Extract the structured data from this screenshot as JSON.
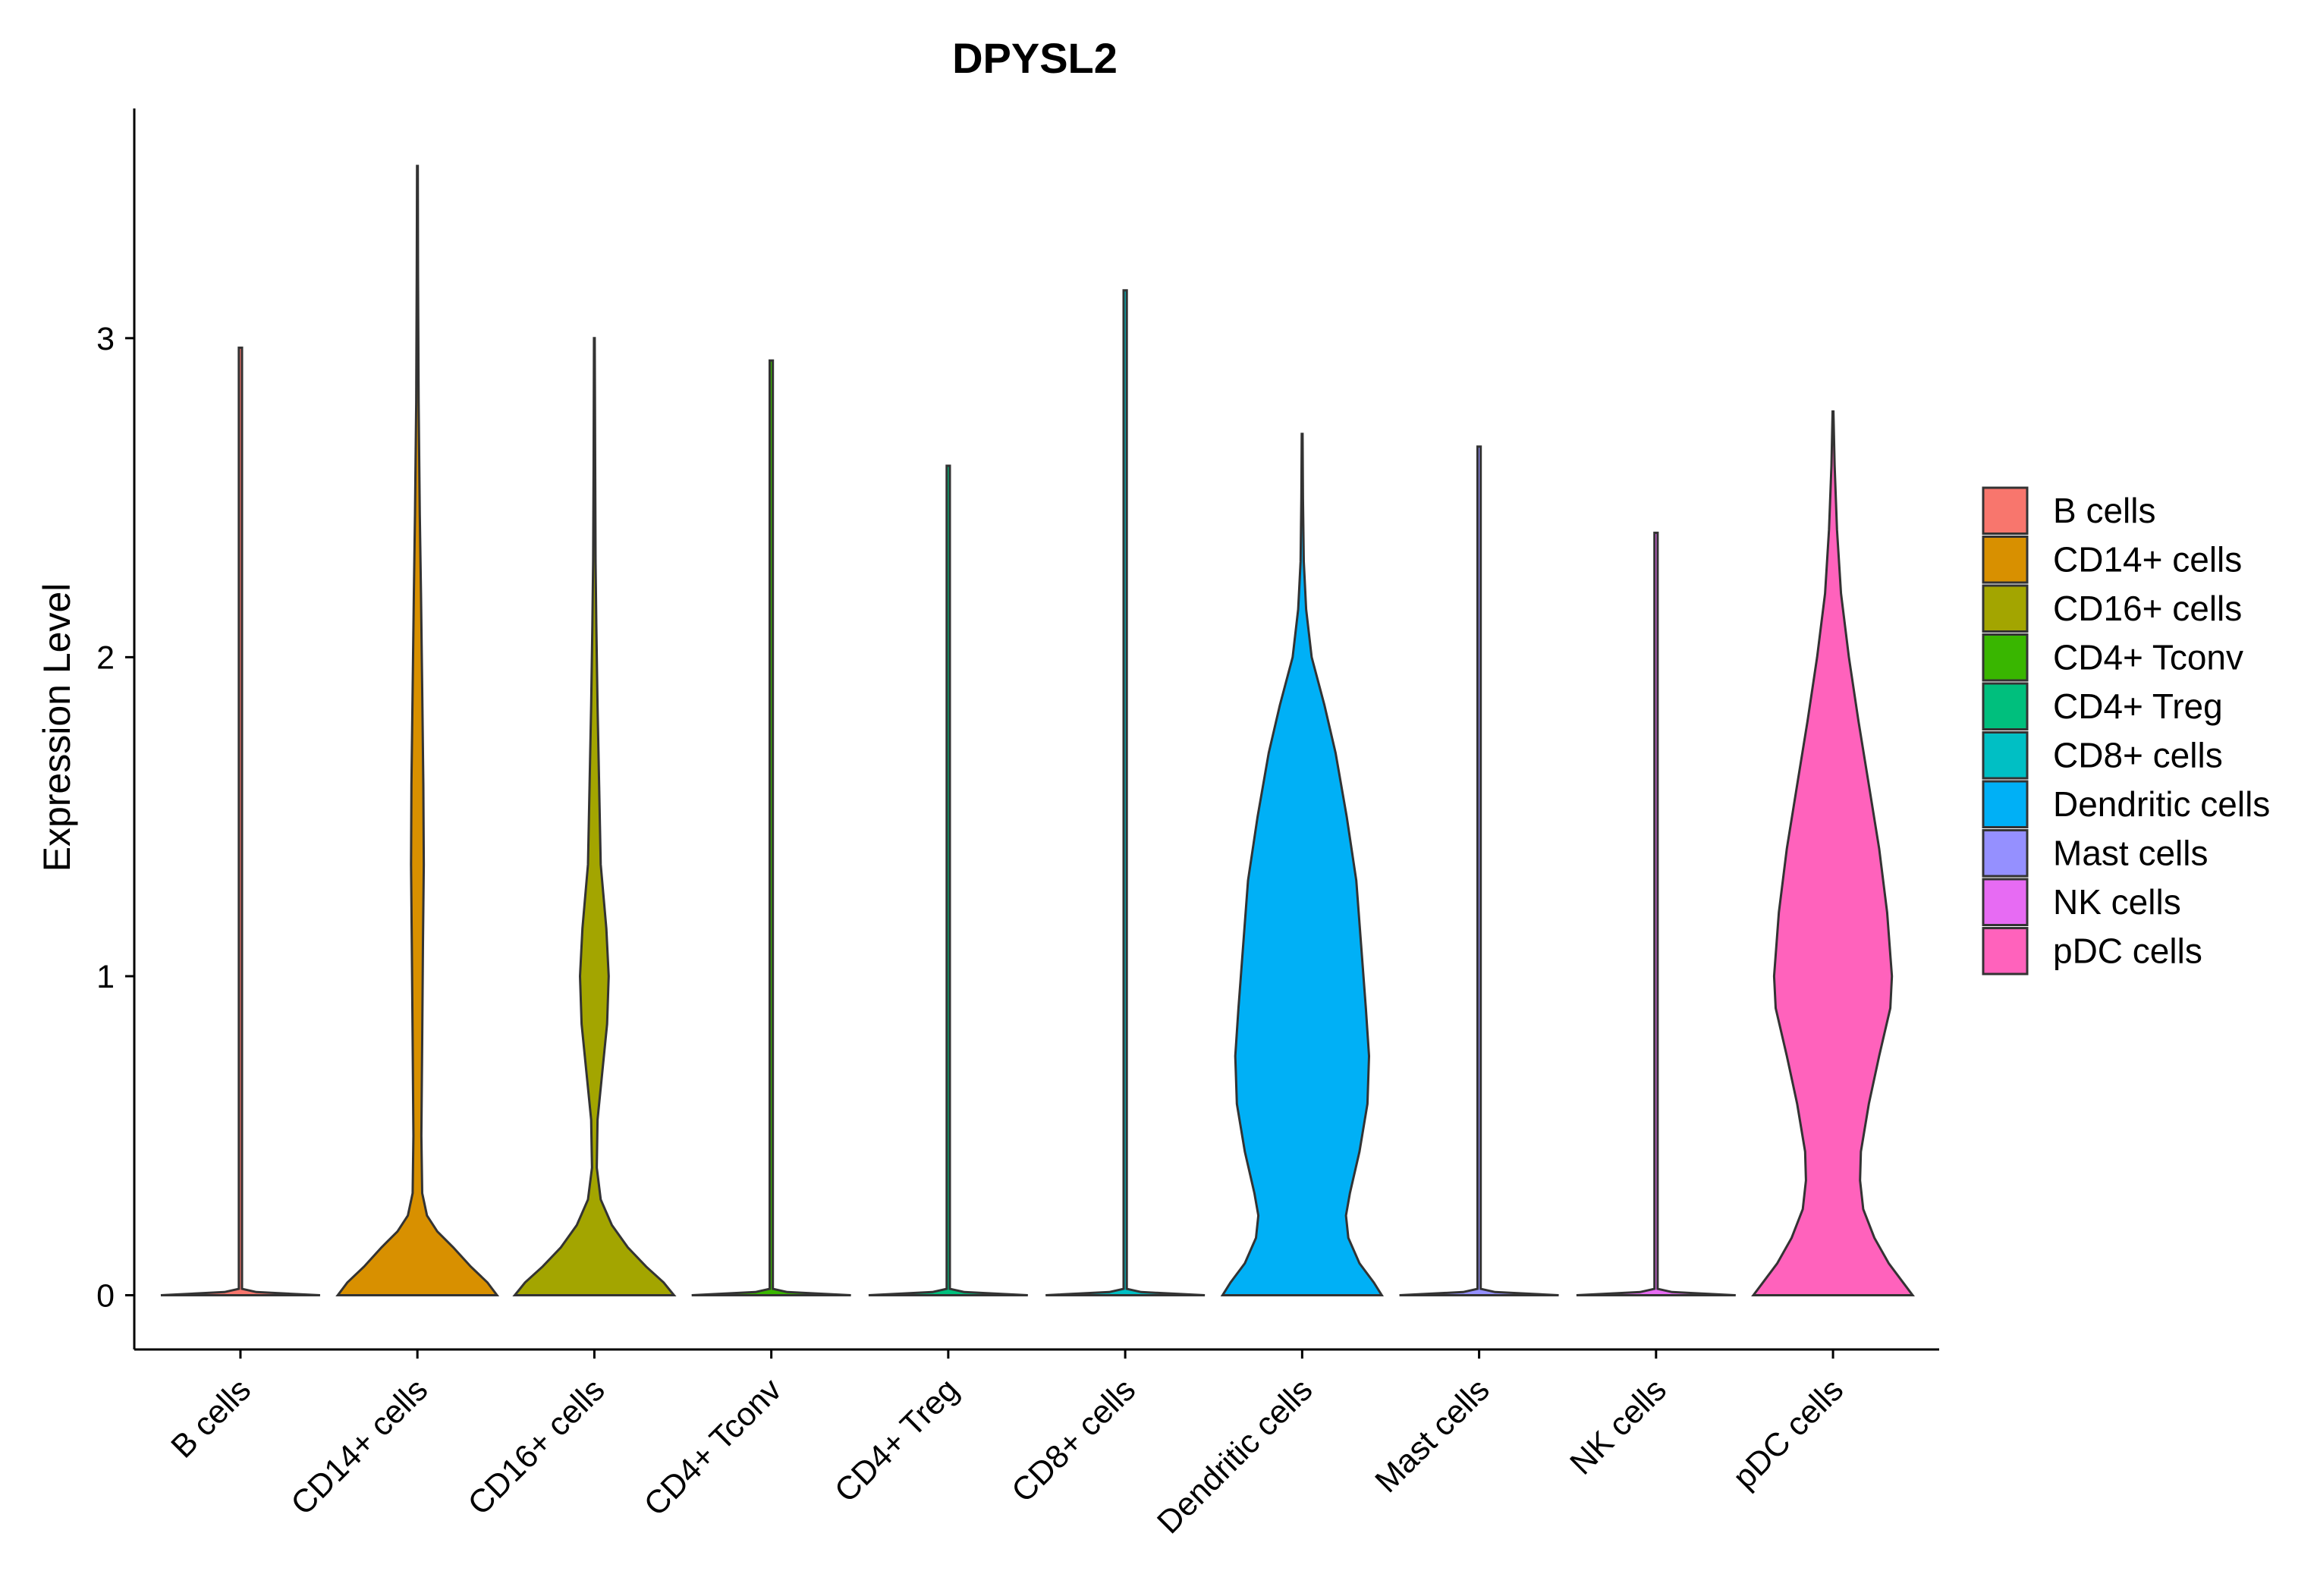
{
  "chart_data": {
    "type": "violin",
    "title": "DPYSL2",
    "xlabel": "",
    "ylabel": "Expression Level",
    "ylim": [
      -0.17,
      3.72
    ],
    "yticks": [
      0,
      1,
      2,
      3
    ],
    "legend_position": "right",
    "categories": [
      "B cells",
      "CD14+ cells",
      "CD16+ cells",
      "CD4+ Tconv",
      "CD4+ Treg",
      "CD8+ cells",
      "Dendritic cells",
      "Mast cells",
      "NK cells",
      "pDC cells"
    ],
    "colors": [
      "#F8766D",
      "#D89000",
      "#A3A500",
      "#39B600",
      "#00BF7D",
      "#00BFC4",
      "#00B0F6",
      "#9590FF",
      "#E76BF3",
      "#FF62BC"
    ],
    "max_values": [
      2.97,
      3.54,
      3.0,
      2.93,
      2.6,
      3.15,
      2.7,
      2.66,
      2.39,
      2.77
    ],
    "density_profiles": [
      [
        [
          0,
          1.0
        ],
        [
          0.01,
          0.2
        ],
        [
          0.02,
          0.02
        ],
        [
          2.97,
          0.02
        ]
      ],
      [
        [
          0,
          1.0
        ],
        [
          0.04,
          0.88
        ],
        [
          0.09,
          0.67
        ],
        [
          0.15,
          0.45
        ],
        [
          0.2,
          0.25
        ],
        [
          0.25,
          0.12
        ],
        [
          0.32,
          0.06
        ],
        [
          0.5,
          0.05
        ],
        [
          0.8,
          0.06
        ],
        [
          1.1,
          0.07
        ],
        [
          1.35,
          0.08
        ],
        [
          1.6,
          0.075
        ],
        [
          1.9,
          0.06
        ],
        [
          2.2,
          0.045
        ],
        [
          2.45,
          0.03
        ],
        [
          2.8,
          0.015
        ],
        [
          3.2,
          0.008
        ],
        [
          3.54,
          0.005
        ]
      ],
      [
        [
          0,
          1.0
        ],
        [
          0.04,
          0.87
        ],
        [
          0.09,
          0.65
        ],
        [
          0.15,
          0.42
        ],
        [
          0.22,
          0.22
        ],
        [
          0.3,
          0.08
        ],
        [
          0.4,
          0.03
        ],
        [
          0.55,
          0.04
        ],
        [
          0.7,
          0.1
        ],
        [
          0.85,
          0.16
        ],
        [
          1.0,
          0.18
        ],
        [
          1.15,
          0.15
        ],
        [
          1.35,
          0.08
        ],
        [
          1.6,
          0.06
        ],
        [
          1.85,
          0.04
        ],
        [
          2.1,
          0.025
        ],
        [
          2.3,
          0.015
        ],
        [
          2.6,
          0.01
        ],
        [
          3.0,
          0.005
        ]
      ],
      [
        [
          0,
          1.0
        ],
        [
          0.01,
          0.2
        ],
        [
          0.02,
          0.02
        ],
        [
          2.93,
          0.02
        ]
      ],
      [
        [
          0,
          1.0
        ],
        [
          0.01,
          0.2
        ],
        [
          0.02,
          0.02
        ],
        [
          2.6,
          0.02
        ]
      ],
      [
        [
          0,
          1.0
        ],
        [
          0.01,
          0.2
        ],
        [
          0.02,
          0.02
        ],
        [
          3.15,
          0.02
        ]
      ],
      [
        [
          0,
          1.0
        ],
        [
          0.04,
          0.9
        ],
        [
          0.1,
          0.72
        ],
        [
          0.18,
          0.58
        ],
        [
          0.25,
          0.55
        ],
        [
          0.32,
          0.6
        ],
        [
          0.45,
          0.72
        ],
        [
          0.6,
          0.82
        ],
        [
          0.75,
          0.84
        ],
        [
          0.9,
          0.8
        ],
        [
          1.1,
          0.74
        ],
        [
          1.3,
          0.68
        ],
        [
          1.5,
          0.56
        ],
        [
          1.7,
          0.42
        ],
        [
          1.85,
          0.28
        ],
        [
          2.0,
          0.12
        ],
        [
          2.15,
          0.05
        ],
        [
          2.3,
          0.02
        ],
        [
          2.5,
          0.01
        ],
        [
          2.7,
          0.005
        ]
      ],
      [
        [
          0,
          1.0
        ],
        [
          0.01,
          0.2
        ],
        [
          0.02,
          0.02
        ],
        [
          2.66,
          0.02
        ]
      ],
      [
        [
          0,
          1.0
        ],
        [
          0.01,
          0.2
        ],
        [
          0.02,
          0.02
        ],
        [
          2.39,
          0.02
        ]
      ],
      [
        [
          0,
          1.0
        ],
        [
          0.04,
          0.88
        ],
        [
          0.1,
          0.7
        ],
        [
          0.18,
          0.52
        ],
        [
          0.27,
          0.38
        ],
        [
          0.36,
          0.34
        ],
        [
          0.45,
          0.35
        ],
        [
          0.6,
          0.45
        ],
        [
          0.75,
          0.58
        ],
        [
          0.9,
          0.72
        ],
        [
          1.0,
          0.74
        ],
        [
          1.2,
          0.68
        ],
        [
          1.4,
          0.58
        ],
        [
          1.6,
          0.45
        ],
        [
          1.8,
          0.32
        ],
        [
          2.0,
          0.2
        ],
        [
          2.2,
          0.1
        ],
        [
          2.4,
          0.05
        ],
        [
          2.6,
          0.02
        ],
        [
          2.77,
          0.005
        ]
      ]
    ]
  }
}
